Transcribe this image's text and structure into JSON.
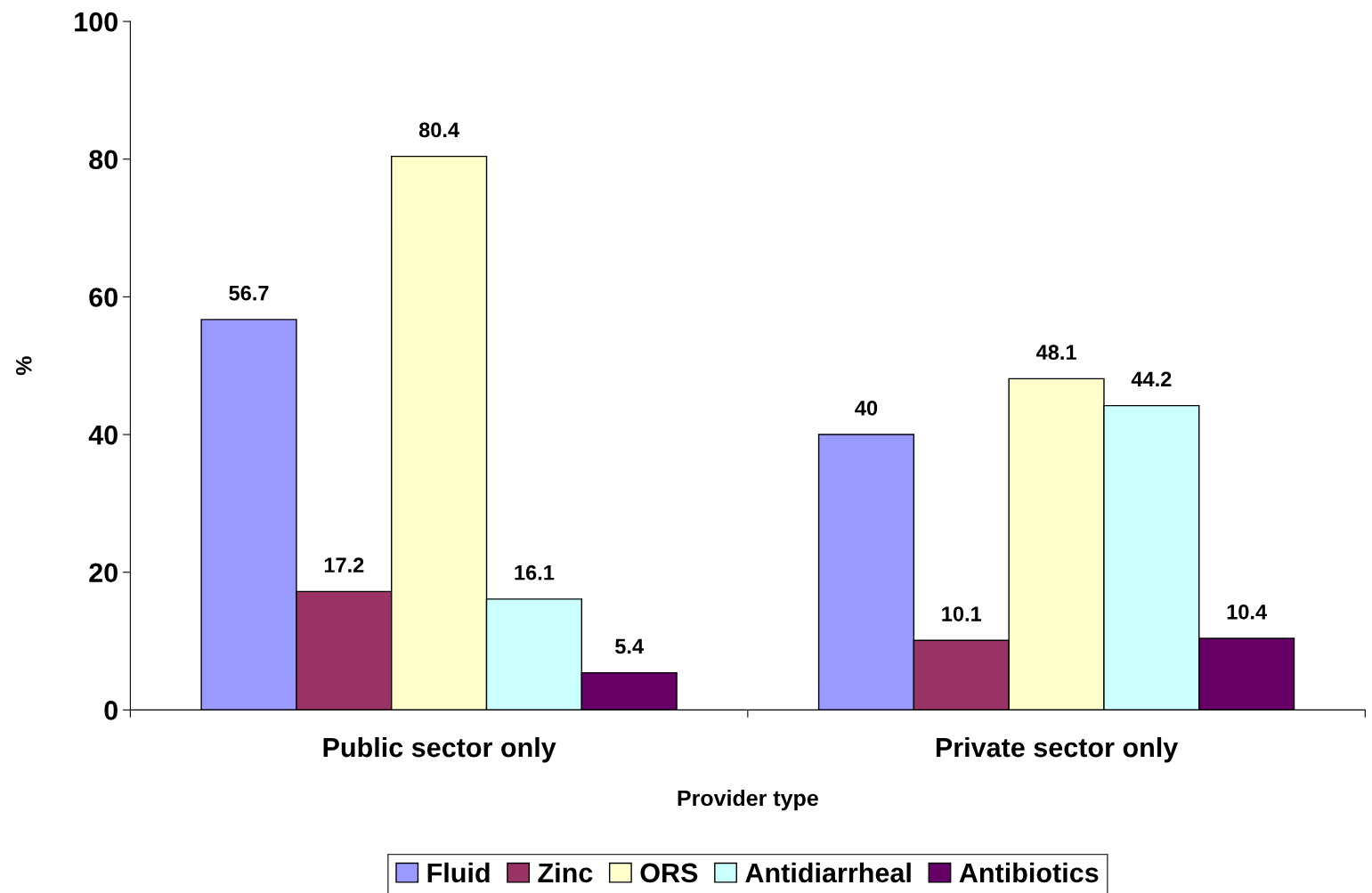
{
  "chart_data": {
    "type": "bar",
    "xlabel": "Provider type",
    "ylabel": "%",
    "categories": [
      "Public sector only",
      "Private sector only"
    ],
    "series": [
      {
        "name": "Fluid",
        "color": "#9999ff",
        "values": [
          56.7,
          40
        ]
      },
      {
        "name": "Zinc",
        "color": "#993366",
        "values": [
          17.2,
          10.1
        ]
      },
      {
        "name": "ORS",
        "color": "#ffffcc",
        "values": [
          80.4,
          48.1
        ]
      },
      {
        "name": "Antidiarrheal",
        "color": "#ccffff",
        "values": [
          16.1,
          44.2
        ]
      },
      {
        "name": "Antibiotics",
        "color": "#660066",
        "values": [
          5.4,
          10.4
        ]
      }
    ],
    "ylim": [
      0,
      100
    ],
    "yticks": [
      0,
      20,
      40,
      60,
      80,
      100
    ],
    "grid": false,
    "legend": "bottom",
    "data_labels": true
  }
}
